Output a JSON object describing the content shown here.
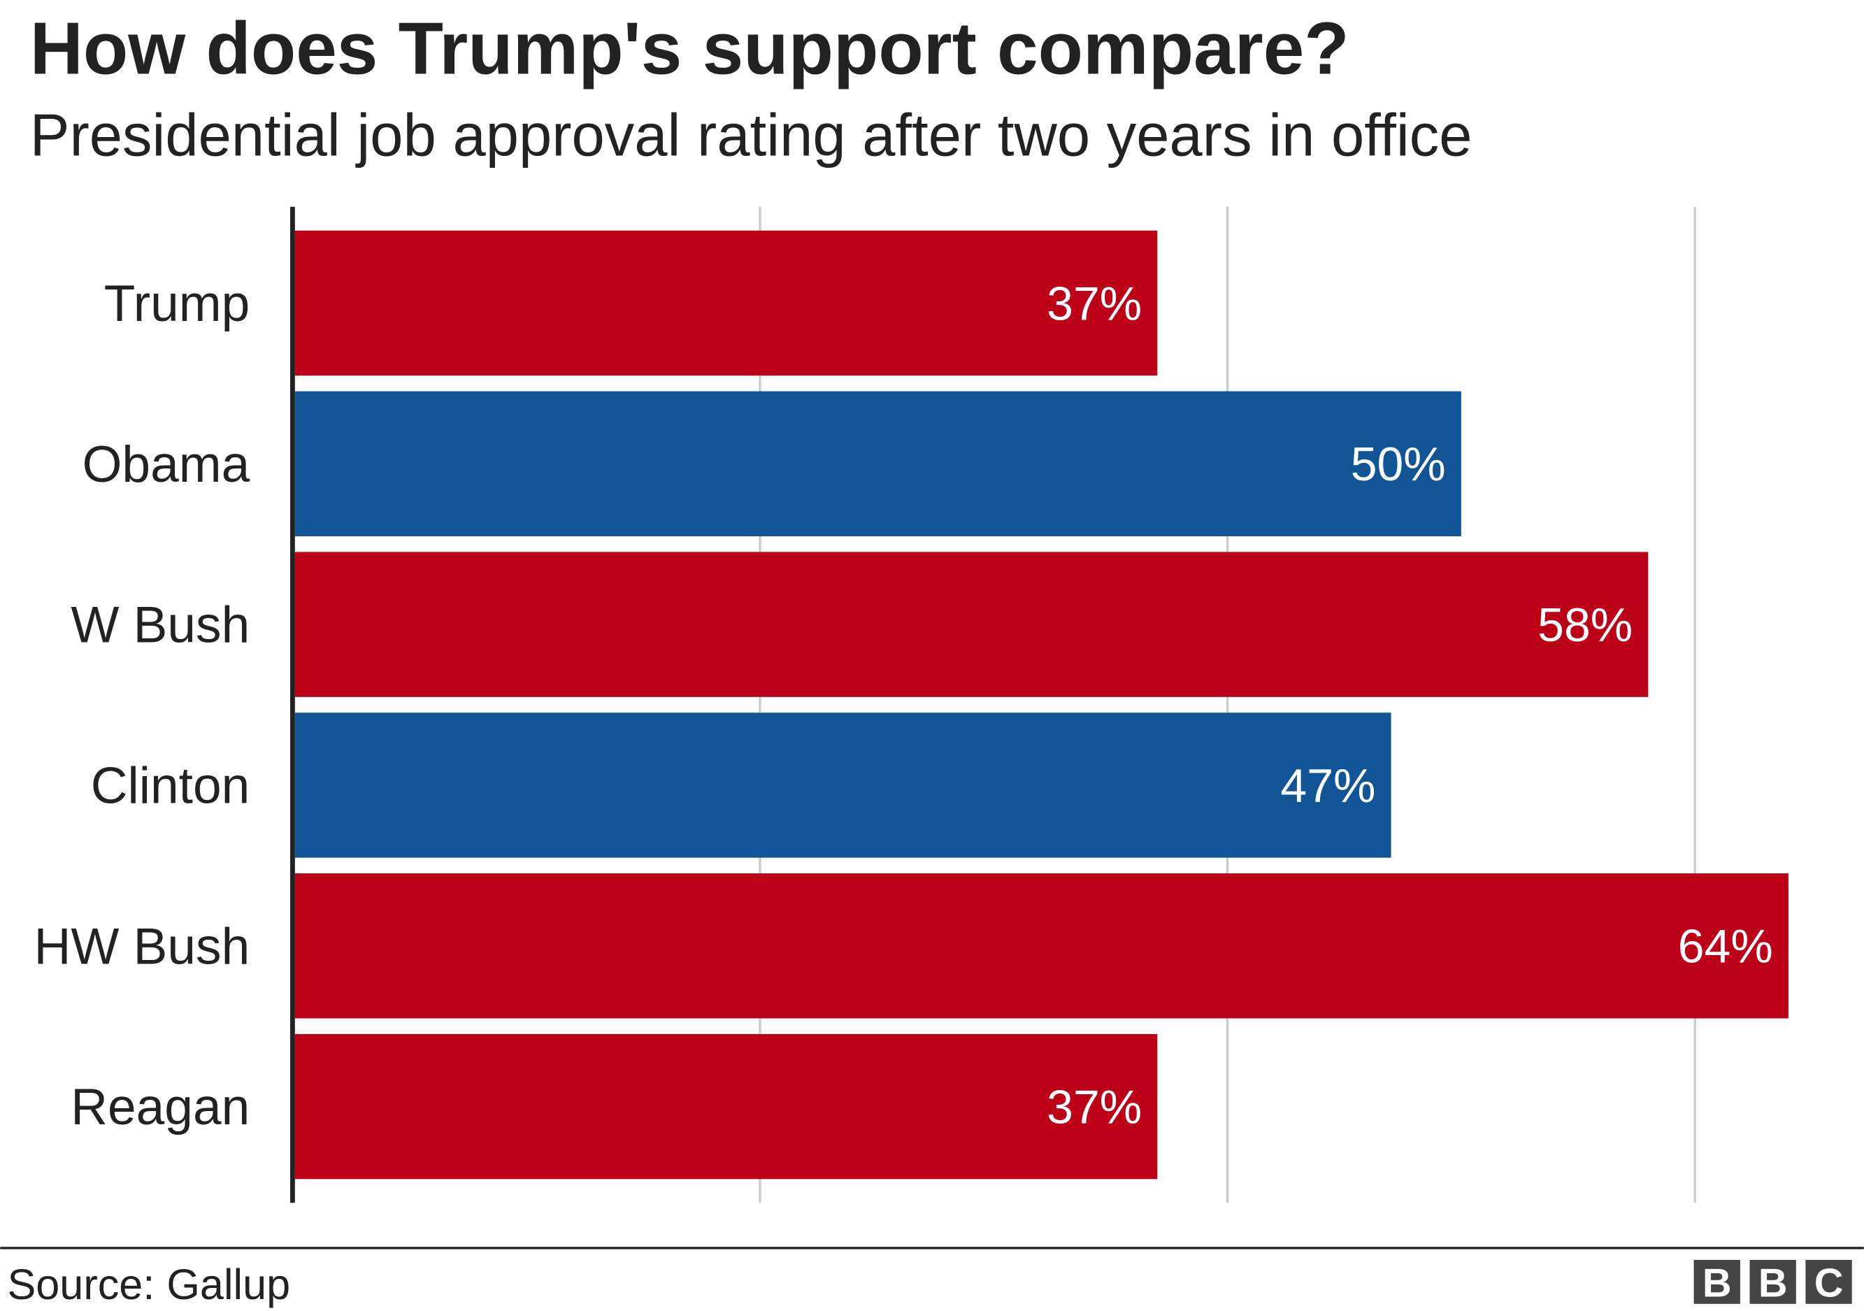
{
  "chart_data": {
    "type": "bar",
    "orientation": "horizontal",
    "title": "How does Trump's support compare?",
    "subtitle": "Presidential job approval rating after two years in office",
    "categories": [
      "Trump",
      "Obama",
      "W Bush",
      "Clinton",
      "HW Bush",
      "Reagan"
    ],
    "values": [
      37,
      50,
      58,
      47,
      64,
      37
    ],
    "data_labels": [
      "37%",
      "50%",
      "58%",
      "47%",
      "64%",
      "37%"
    ],
    "bar_colors": [
      "#bb0017",
      "#115597",
      "#bb0017",
      "#115597",
      "#bb0017",
      "#bb0017"
    ],
    "xlim": [
      0,
      66
    ],
    "gridlines_at": [
      20,
      40,
      60
    ],
    "grid": true,
    "xlabel": "",
    "ylabel": ""
  },
  "footer": {
    "source": "Source: Gallup",
    "logo_letters": [
      "B",
      "B",
      "C"
    ]
  }
}
